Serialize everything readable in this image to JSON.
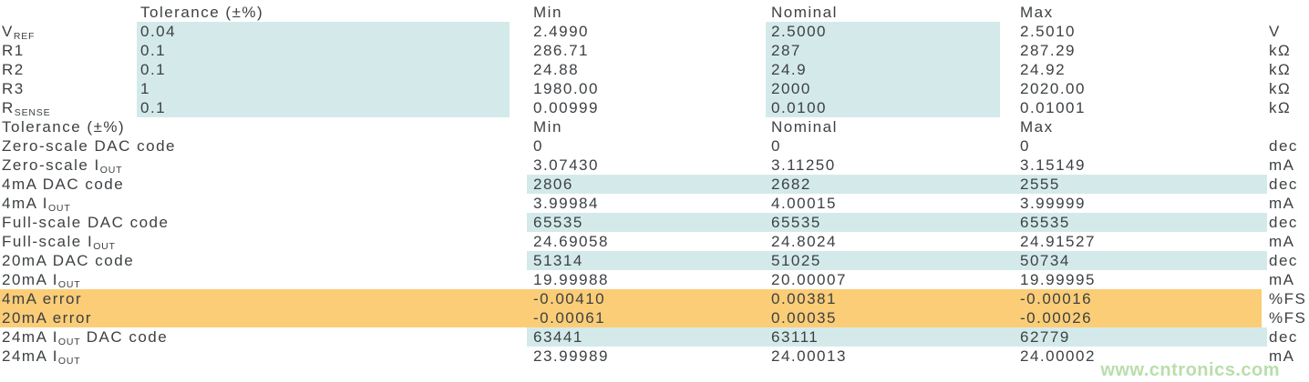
{
  "page": {
    "watermark": "www.cntronics.com"
  },
  "colors": {
    "blue": "#d4eaea",
    "orange": "#fbcd77",
    "text": "#3d4144",
    "watermark": "#b1dba2",
    "background": "#ffffff"
  },
  "table": {
    "columns": [
      "",
      "Tolerance (±%)",
      "Min",
      "Nominal",
      "Max",
      "unit"
    ],
    "rows": [
      {
        "kind": "header",
        "highlight": "none",
        "label_pre": "",
        "label_sub": "",
        "label_post": "",
        "tol": "Tolerance (±%)",
        "min": "Min",
        "nominal": "Nominal",
        "max": "Max",
        "unit": ""
      },
      {
        "kind": "s1",
        "highlight": "s1",
        "label_pre": "V",
        "label_sub": "REF",
        "label_post": "",
        "tol": "0.04",
        "min": "2.4990",
        "nominal": "2.5000",
        "max": "2.5010",
        "unit": "V"
      },
      {
        "kind": "s1",
        "highlight": "s1",
        "label_pre": "R1",
        "label_sub": "",
        "label_post": "",
        "tol": "0.1",
        "min": "286.71",
        "nominal": "287",
        "max": "287.29",
        "unit": "kΩ"
      },
      {
        "kind": "s1",
        "highlight": "s1",
        "label_pre": "R2",
        "label_sub": "",
        "label_post": "",
        "tol": "0.1",
        "min": "24.88",
        "nominal": "24.9",
        "max": "24.92",
        "unit": "kΩ"
      },
      {
        "kind": "s1",
        "highlight": "s1",
        "label_pre": "R3",
        "label_sub": "",
        "label_post": "",
        "tol": "1",
        "min": "1980.00",
        "nominal": "2000",
        "max": "2020.00",
        "unit": "kΩ"
      },
      {
        "kind": "s1",
        "highlight": "s1",
        "label_pre": "R",
        "label_sub": "SENSE",
        "label_post": "",
        "tol": "0.1",
        "min": "0.00999",
        "nominal": "0.0100",
        "max": "0.01001",
        "unit": "kΩ"
      },
      {
        "kind": "header2",
        "highlight": "none",
        "label_pre": "Tolerance (±%)",
        "label_sub": "",
        "label_post": "",
        "tol": "",
        "min": "Min",
        "nominal": "Nominal",
        "max": "Max",
        "unit": ""
      },
      {
        "kind": "s2",
        "highlight": "none",
        "label_pre": "Zero-scale DAC code",
        "label_sub": "",
        "label_post": "",
        "tol": "",
        "min": "0",
        "nominal": "0",
        "max": "0",
        "unit": "dec"
      },
      {
        "kind": "s2",
        "highlight": "none",
        "label_pre": "Zero-scale I",
        "label_sub": "OUT",
        "label_post": "",
        "tol": "",
        "min": "3.07430",
        "nominal": "3.11250",
        "max": "3.15149",
        "unit": "mA"
      },
      {
        "kind": "s2",
        "highlight": "blue",
        "label_pre": "4mA DAC code",
        "label_sub": "",
        "label_post": "",
        "tol": "",
        "min": "2806",
        "nominal": "2682",
        "max": "2555",
        "unit": "dec"
      },
      {
        "kind": "s2",
        "highlight": "none",
        "label_pre": "4mA I",
        "label_sub": "OUT",
        "label_post": "",
        "tol": "",
        "min": "3.99984",
        "nominal": "4.00015",
        "max": "3.99999",
        "unit": "mA"
      },
      {
        "kind": "s2",
        "highlight": "blue",
        "label_pre": "Full-scale DAC code",
        "label_sub": "",
        "label_post": "",
        "tol": "",
        "min": "65535",
        "nominal": "65535",
        "max": "65535",
        "unit": "dec"
      },
      {
        "kind": "s2",
        "highlight": "none",
        "label_pre": "Full-scale I",
        "label_sub": "OUT",
        "label_post": "",
        "tol": "",
        "min": "24.69058",
        "nominal": "24.8024",
        "max": "24.91527",
        "unit": "mA"
      },
      {
        "kind": "s2",
        "highlight": "blue",
        "label_pre": "20mA DAC code",
        "label_sub": "",
        "label_post": "",
        "tol": "",
        "min": "51314",
        "nominal": "51025",
        "max": "50734",
        "unit": "dec"
      },
      {
        "kind": "s2",
        "highlight": "none",
        "label_pre": "20mA I",
        "label_sub": "OUT",
        "label_post": "",
        "tol": "",
        "min": "19.99988",
        "nominal": "20.00007",
        "max": "19.99995",
        "unit": "mA"
      },
      {
        "kind": "s2",
        "highlight": "orange",
        "label_pre": "4mA error",
        "label_sub": "",
        "label_post": "",
        "tol": "",
        "min": "-0.00410",
        "nominal": "0.00381",
        "max": "-0.00016",
        "unit": "%FS"
      },
      {
        "kind": "s2",
        "highlight": "orange",
        "label_pre": "20mA error",
        "label_sub": "",
        "label_post": "",
        "tol": "",
        "min": "-0.00061",
        "nominal": "0.00035",
        "max": "-0.00026",
        "unit": "%FS"
      },
      {
        "kind": "s2",
        "highlight": "blue",
        "label_pre": "24mA I",
        "label_sub": "OUT",
        "label_post": " DAC code",
        "tol": "",
        "min": "63441",
        "nominal": "63111",
        "max": "62779",
        "unit": "dec"
      },
      {
        "kind": "s2",
        "highlight": "none",
        "label_pre": "24mA I",
        "label_sub": "OUT",
        "label_post": "",
        "tol": "",
        "min": "23.99989",
        "nominal": "24.00013",
        "max": "24.00002",
        "unit": "mA"
      }
    ]
  }
}
